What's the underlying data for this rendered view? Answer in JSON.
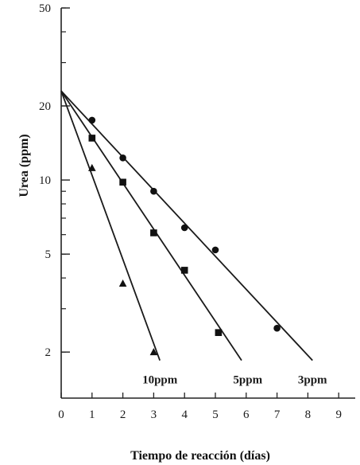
{
  "chart_data": {
    "type": "scatter",
    "xlabel": "Tiempo de reacción (días)",
    "ylabel": "Urea (ppm)",
    "xlim": [
      0,
      9.6
    ],
    "ylim": [
      1.3,
      50
    ],
    "y_scale": "log",
    "x_ticks": [
      0,
      1,
      2,
      3,
      4,
      5,
      6,
      7,
      8,
      9
    ],
    "y_ticks": [
      2,
      5,
      10,
      20,
      50
    ],
    "grid": false,
    "series": [
      {
        "name": "3ppm",
        "marker": "circle",
        "points": [
          [
            1,
            17.5
          ],
          [
            2,
            12.3
          ],
          [
            3,
            9.0
          ],
          [
            4,
            6.4
          ],
          [
            5,
            5.2
          ],
          [
            7,
            2.5
          ]
        ],
        "fit_line": [
          [
            0,
            23
          ],
          [
            8.15,
            1.85
          ]
        ],
        "label_anchor": [
          8.15,
          1.55
        ]
      },
      {
        "name": "5ppm",
        "marker": "square",
        "points": [
          [
            1,
            14.8
          ],
          [
            2,
            9.8
          ],
          [
            3,
            6.1
          ],
          [
            4,
            4.3
          ],
          [
            5.1,
            2.4
          ]
        ],
        "fit_line": [
          [
            0,
            23
          ],
          [
            5.85,
            1.85
          ]
        ],
        "label_anchor": [
          6.05,
          1.55
        ]
      },
      {
        "name": "10ppm",
        "marker": "triangle",
        "points": [
          [
            1,
            11.2
          ],
          [
            2,
            3.8
          ],
          [
            3,
            2.0
          ]
        ],
        "fit_line": [
          [
            0,
            23
          ],
          [
            3.2,
            1.85
          ]
        ],
        "label_anchor": [
          3.2,
          1.55
        ]
      }
    ]
  }
}
